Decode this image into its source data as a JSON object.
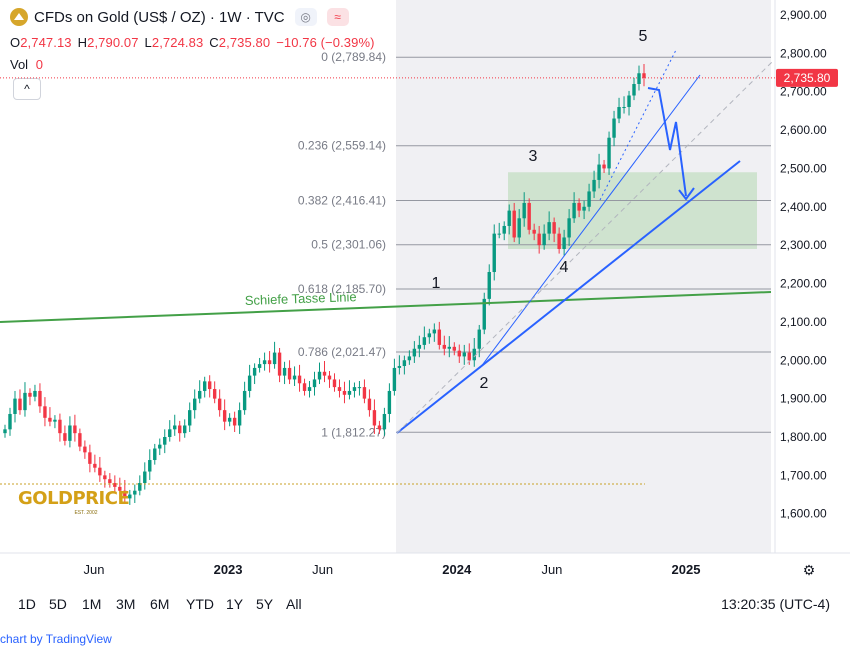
{
  "header": {
    "title": "CFDs on Gold (US$ / OZ) · 1W · TVC",
    "pill_icon": "wave-icon",
    "ohlc": [
      {
        "k": "O",
        "v": "2,747.13"
      },
      {
        "k": "H",
        "v": "2,790.07"
      },
      {
        "k": "L",
        "v": "2,724.83"
      },
      {
        "k": "C",
        "v": "2,735.80"
      },
      {
        "k": "",
        "v": "−10.76 (−0.39%)"
      }
    ],
    "vol_label": "Vol",
    "vol_value": "0",
    "collapse_label": "^"
  },
  "watermark": {
    "text": "GOLDPRICE",
    "sub": "EST. 2002"
  },
  "price_tag": "2,735.80",
  "timeframes": [
    "1D",
    "5D",
    "1M",
    "3M",
    "6M",
    "YTD",
    "1Y",
    "5Y",
    "All"
  ],
  "clock": "13:20:35 (UTC-4)",
  "footer": "chart by TradingView",
  "colors": {
    "up": "#089981",
    "down": "#f23645",
    "blue": "#2962ff",
    "green": "#43a047",
    "fibzone": "#cfe3cf"
  },
  "chart_data": {
    "type": "candlestick",
    "title": "CFDs on Gold (US$ / OZ) · 1W · TVC",
    "ylim": [
      1520,
      2940
    ],
    "y_ticks": [
      "2,900.00",
      "2,800.00",
      "2,700.00",
      "2,600.00",
      "2,500.00",
      "2,400.00",
      "2,300.00",
      "2,200.00",
      "2,100.00",
      "2,000.00",
      "1,900.00",
      "1,800.00",
      "1,700.00",
      "1,600.00"
    ],
    "x_ticks": [
      {
        "label": "Jun",
        "date": "2022-06-01"
      },
      {
        "label": "2023",
        "date": "2023-01-01"
      },
      {
        "label": "Jun",
        "date": "2023-06-01"
      },
      {
        "label": "2024",
        "date": "2024-01-01"
      },
      {
        "label": "Jun",
        "date": "2024-06-01"
      },
      {
        "label": "2025",
        "date": "2025-01-01"
      }
    ],
    "fib_levels": [
      {
        "label": "0 (2,789.84)",
        "value": 2789.84
      },
      {
        "label": "0.236 (2,559.14)",
        "value": 2559.14
      },
      {
        "label": "0.382 (2,416.41)",
        "value": 2416.41
      },
      {
        "label": "0.5 (2,301.06)",
        "value": 2301.06
      },
      {
        "label": "0.618 (2,185.70)",
        "value": 2185.7
      },
      {
        "label": "0.786 (2,021.47)",
        "value": 2021.47
      },
      {
        "label": "1 (1,812.27)",
        "value": 1812.27
      }
    ],
    "wave_labels": [
      "1",
      "2",
      "3",
      "4",
      "5"
    ],
    "trendline_label": "Schiefe Tasse Linie",
    "closes": [
      1820,
      1860,
      1900,
      1870,
      1915,
      1905,
      1920,
      1880,
      1850,
      1840,
      1845,
      1810,
      1790,
      1830,
      1810,
      1775,
      1760,
      1730,
      1720,
      1700,
      1690,
      1680,
      1670,
      1660,
      1640,
      1650,
      1660,
      1680,
      1710,
      1740,
      1770,
      1780,
      1800,
      1820,
      1830,
      1810,
      1830,
      1870,
      1900,
      1920,
      1945,
      1925,
      1900,
      1870,
      1840,
      1850,
      1830,
      1870,
      1920,
      1960,
      1980,
      1990,
      2000,
      1990,
      2020,
      1960,
      1980,
      1950,
      1960,
      1940,
      1920,
      1930,
      1950,
      1970,
      1960,
      1950,
      1930,
      1920,
      1910,
      1920,
      1930,
      1930,
      1900,
      1870,
      1830,
      1820,
      1860,
      1920,
      1980,
      1985,
      2000,
      2010,
      2030,
      2040,
      2060,
      2070,
      2080,
      2040,
      2030,
      2035,
      2025,
      2010,
      2020,
      2000,
      2030,
      2080,
      2160,
      2230,
      2330,
      2330,
      2350,
      2390,
      2320,
      2370,
      2410,
      2340,
      2330,
      2300,
      2330,
      2360,
      2330,
      2290,
      2320,
      2370,
      2410,
      2390,
      2400,
      2440,
      2470,
      2510,
      2500,
      2580,
      2630,
      2660,
      2660,
      2690,
      2720,
      2748,
      2736
    ],
    "last_close": 2735.8
  }
}
